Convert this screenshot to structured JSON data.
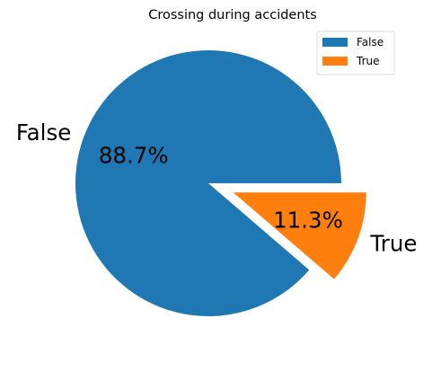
{
  "chart_data": {
    "type": "pie",
    "title": "Crossing during accidents",
    "slices": [
      {
        "label": "False",
        "value": 88.7,
        "pct_label": "88.7%",
        "color": "#1f77b4",
        "exploded": false
      },
      {
        "label": "True",
        "value": 11.3,
        "pct_label": "11.3%",
        "color": "#ff7f0e",
        "exploded": true
      }
    ],
    "start_angle": 0,
    "direction": "counterclockwise",
    "legend": {
      "placement": "top-right",
      "entries": [
        "False",
        "True"
      ]
    }
  }
}
